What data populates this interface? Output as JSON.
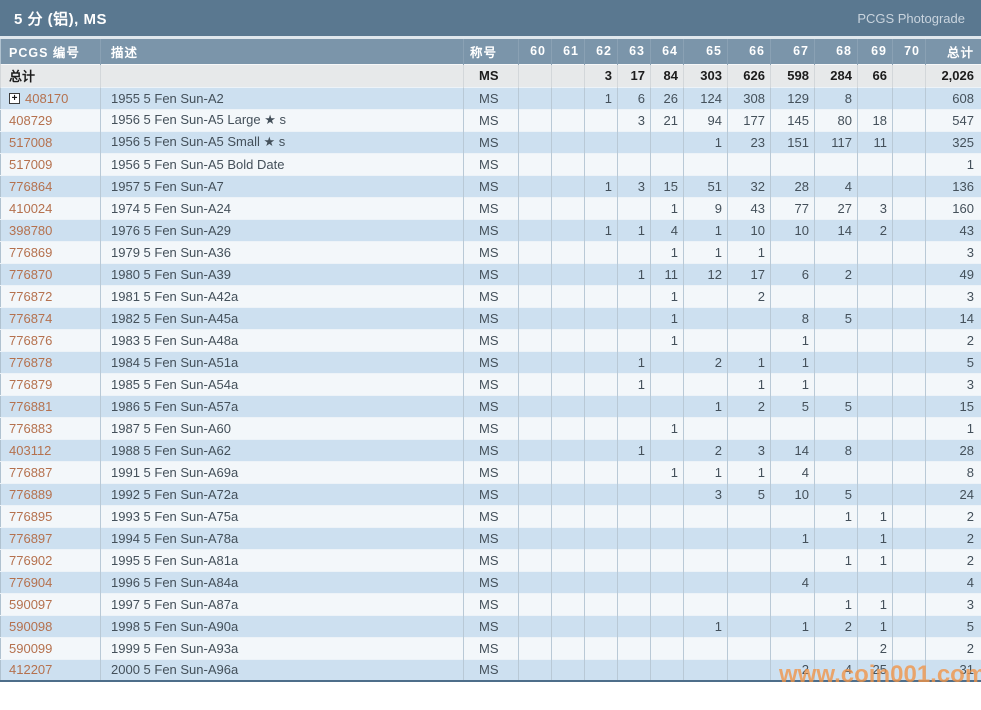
{
  "header": {
    "title": "5 分 (铝), MS",
    "photograde_label": "PCGS Photograde"
  },
  "table": {
    "col_headers": {
      "pcgs_no": "PCGS 编号",
      "description": "描述",
      "designation": "称号",
      "grades": [
        "60",
        "61",
        "62",
        "63",
        "64",
        "65",
        "66",
        "67",
        "68",
        "69",
        "70"
      ],
      "total": "总计"
    },
    "totals_row": {
      "label": "总计",
      "designation": "MS",
      "values": [
        "",
        "",
        "3",
        "17",
        "84",
        "303",
        "626",
        "598",
        "284",
        "66",
        ""
      ],
      "total": "2,026"
    },
    "rows": [
      {
        "pcgs_no": "408170",
        "expandable": true,
        "description": "1955 5 Fen Sun-A2",
        "designation": "MS",
        "values": [
          "",
          "",
          "1",
          "6",
          "26",
          "124",
          "308",
          "129",
          "8",
          "",
          ""
        ],
        "total": "608"
      },
      {
        "pcgs_no": "408729",
        "expandable": false,
        "description": "1956 5 Fen Sun-A5 Large ★ s",
        "designation": "MS",
        "values": [
          "",
          "",
          "",
          "3",
          "21",
          "94",
          "177",
          "145",
          "80",
          "18",
          ""
        ],
        "total": "547"
      },
      {
        "pcgs_no": "517008",
        "expandable": false,
        "description": "1956 5 Fen Sun-A5 Small ★ s",
        "designation": "MS",
        "values": [
          "",
          "",
          "",
          "",
          "",
          "1",
          "23",
          "151",
          "117",
          "11",
          ""
        ],
        "total": "325"
      },
      {
        "pcgs_no": "517009",
        "expandable": false,
        "description": "1956 5 Fen Sun-A5 Bold Date",
        "designation": "MS",
        "values": [
          "",
          "",
          "",
          "",
          "",
          "",
          "",
          "",
          "",
          "",
          ""
        ],
        "total": "1"
      },
      {
        "pcgs_no": "776864",
        "expandable": false,
        "description": "1957 5 Fen Sun-A7",
        "designation": "MS",
        "values": [
          "",
          "",
          "1",
          "3",
          "15",
          "51",
          "32",
          "28",
          "4",
          "",
          ""
        ],
        "total": "136"
      },
      {
        "pcgs_no": "410024",
        "expandable": false,
        "description": "1974 5 Fen Sun-A24",
        "designation": "MS",
        "values": [
          "",
          "",
          "",
          "",
          "1",
          "9",
          "43",
          "77",
          "27",
          "3",
          ""
        ],
        "total": "160"
      },
      {
        "pcgs_no": "398780",
        "expandable": false,
        "description": "1976 5 Fen Sun-A29",
        "designation": "MS",
        "values": [
          "",
          "",
          "1",
          "1",
          "4",
          "1",
          "10",
          "10",
          "14",
          "2",
          ""
        ],
        "total": "43"
      },
      {
        "pcgs_no": "776869",
        "expandable": false,
        "description": "1979 5 Fen Sun-A36",
        "designation": "MS",
        "values": [
          "",
          "",
          "",
          "",
          "1",
          "1",
          "1",
          "",
          "",
          "",
          ""
        ],
        "total": "3"
      },
      {
        "pcgs_no": "776870",
        "expandable": false,
        "description": "1980 5 Fen Sun-A39",
        "designation": "MS",
        "values": [
          "",
          "",
          "",
          "1",
          "11",
          "12",
          "17",
          "6",
          "2",
          "",
          ""
        ],
        "total": "49"
      },
      {
        "pcgs_no": "776872",
        "expandable": false,
        "description": "1981 5 Fen Sun-A42a",
        "designation": "MS",
        "values": [
          "",
          "",
          "",
          "",
          "1",
          "",
          "2",
          "",
          "",
          "",
          ""
        ],
        "total": "3"
      },
      {
        "pcgs_no": "776874",
        "expandable": false,
        "description": "1982 5 Fen Sun-A45a",
        "designation": "MS",
        "values": [
          "",
          "",
          "",
          "",
          "1",
          "",
          "",
          "8",
          "5",
          "",
          ""
        ],
        "total": "14"
      },
      {
        "pcgs_no": "776876",
        "expandable": false,
        "description": "1983 5 Fen Sun-A48a",
        "designation": "MS",
        "values": [
          "",
          "",
          "",
          "",
          "1",
          "",
          "",
          "1",
          "",
          "",
          ""
        ],
        "total": "2"
      },
      {
        "pcgs_no": "776878",
        "expandable": false,
        "description": "1984 5 Fen Sun-A51a",
        "designation": "MS",
        "values": [
          "",
          "",
          "",
          "1",
          "",
          "2",
          "1",
          "1",
          "",
          "",
          ""
        ],
        "total": "5"
      },
      {
        "pcgs_no": "776879",
        "expandable": false,
        "description": "1985 5 Fen Sun-A54a",
        "designation": "MS",
        "values": [
          "",
          "",
          "",
          "1",
          "",
          "",
          "1",
          "1",
          "",
          "",
          ""
        ],
        "total": "3"
      },
      {
        "pcgs_no": "776881",
        "expandable": false,
        "description": "1986 5 Fen Sun-A57a",
        "designation": "MS",
        "values": [
          "",
          "",
          "",
          "",
          "",
          "1",
          "2",
          "5",
          "5",
          "",
          ""
        ],
        "total": "15"
      },
      {
        "pcgs_no": "776883",
        "expandable": false,
        "description": "1987 5 Fen Sun-A60",
        "designation": "MS",
        "values": [
          "",
          "",
          "",
          "",
          "1",
          "",
          "",
          "",
          "",
          "",
          ""
        ],
        "total": "1"
      },
      {
        "pcgs_no": "403112",
        "expandable": false,
        "description": "1988 5 Fen Sun-A62",
        "designation": "MS",
        "values": [
          "",
          "",
          "",
          "1",
          "",
          "2",
          "3",
          "14",
          "8",
          "",
          ""
        ],
        "total": "28"
      },
      {
        "pcgs_no": "776887",
        "expandable": false,
        "description": "1991 5 Fen Sun-A69a",
        "designation": "MS",
        "values": [
          "",
          "",
          "",
          "",
          "1",
          "1",
          "1",
          "4",
          "",
          "",
          ""
        ],
        "total": "8"
      },
      {
        "pcgs_no": "776889",
        "expandable": false,
        "description": "1992 5 Fen Sun-A72a",
        "designation": "MS",
        "values": [
          "",
          "",
          "",
          "",
          "",
          "3",
          "5",
          "10",
          "5",
          "",
          ""
        ],
        "total": "24"
      },
      {
        "pcgs_no": "776895",
        "expandable": false,
        "description": "1993 5 Fen Sun-A75a",
        "designation": "MS",
        "values": [
          "",
          "",
          "",
          "",
          "",
          "",
          "",
          "",
          "1",
          "1",
          ""
        ],
        "total": "2"
      },
      {
        "pcgs_no": "776897",
        "expandable": false,
        "description": "1994 5 Fen Sun-A78a",
        "designation": "MS",
        "values": [
          "",
          "",
          "",
          "",
          "",
          "",
          "",
          "1",
          "",
          "1",
          ""
        ],
        "total": "2"
      },
      {
        "pcgs_no": "776902",
        "expandable": false,
        "description": "1995 5 Fen Sun-A81a",
        "designation": "MS",
        "values": [
          "",
          "",
          "",
          "",
          "",
          "",
          "",
          "",
          "1",
          "1",
          ""
        ],
        "total": "2"
      },
      {
        "pcgs_no": "776904",
        "expandable": false,
        "description": "1996 5 Fen Sun-A84a",
        "designation": "MS",
        "values": [
          "",
          "",
          "",
          "",
          "",
          "",
          "",
          "4",
          "",
          "",
          ""
        ],
        "total": "4"
      },
      {
        "pcgs_no": "590097",
        "expandable": false,
        "description": "1997 5 Fen Sun-A87a",
        "designation": "MS",
        "values": [
          "",
          "",
          "",
          "",
          "",
          "",
          "",
          "",
          "1",
          "1",
          ""
        ],
        "total": "3"
      },
      {
        "pcgs_no": "590098",
        "expandable": false,
        "description": "1998 5 Fen Sun-A90a",
        "designation": "MS",
        "values": [
          "",
          "",
          "",
          "",
          "",
          "1",
          "",
          "1",
          "2",
          "1",
          ""
        ],
        "total": "5"
      },
      {
        "pcgs_no": "590099",
        "expandable": false,
        "description": "1999 5 Fen Sun-A93a",
        "designation": "MS",
        "values": [
          "",
          "",
          "",
          "",
          "",
          "",
          "",
          "",
          "",
          "2",
          ""
        ],
        "total": "2"
      },
      {
        "pcgs_no": "412207",
        "expandable": false,
        "description": "2000 5 Fen Sun-A96a",
        "designation": "MS",
        "values": [
          "",
          "",
          "",
          "",
          "",
          "",
          "",
          "2",
          "4",
          "25",
          ""
        ],
        "total": "31"
      }
    ]
  },
  "watermark": "www.coin001.com",
  "colors": {
    "title_bar": "#5a7890",
    "header_bg": "#7b95aa",
    "row_alt_blue": "#cde0f0",
    "row_alt_white": "#f3f7fa",
    "totals_bg": "#e7e9ea",
    "pcgs_link": "#b5714e",
    "watermark_orange": "#f29446"
  }
}
